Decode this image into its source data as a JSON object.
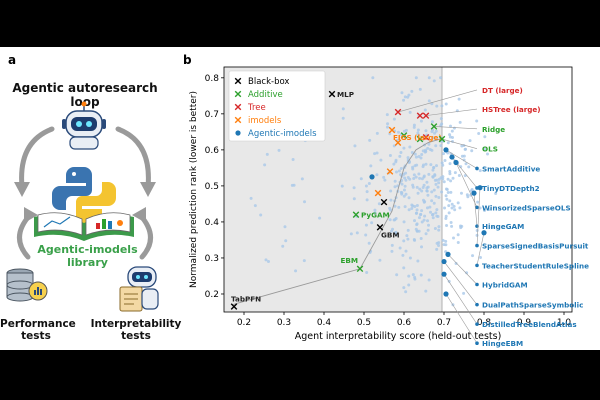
{
  "panel_a": {
    "letter": "a",
    "title": "Agentic autoresearch loop",
    "library_line1": "Agentic-imodels",
    "library_line2": "library",
    "perf_line1": "Performance",
    "perf_line2": "tests",
    "interp_line1": "Interpretability",
    "interp_line2": "tests",
    "library_color": "#3aa04a",
    "icons": [
      "robot-icon",
      "python-logo-icon",
      "book-icon",
      "database-icon",
      "robot-clipboard-icon",
      "cycle-arrow-icon"
    ]
  },
  "panel_b": {
    "letter": "b"
  },
  "chart_data": {
    "type": "scatter",
    "xlabel": "Agent interpretability score (held-out tests)",
    "ylabel": "Normalized prediction rank (lower is better)",
    "xlim": [
      0.15,
      1.02
    ],
    "ylim": [
      0.15,
      0.83
    ],
    "xticks": [
      "0.2",
      "0.3",
      "0.4",
      "0.5",
      "0.6",
      "0.7",
      "0.8",
      "0.9",
      "1.0"
    ],
    "yticks": [
      "0.2",
      "0.3",
      "0.4",
      "0.5",
      "0.6",
      "0.7",
      "0.8"
    ],
    "shaded_region": {
      "x_max": 0.695,
      "color": "#e8e8e8"
    },
    "legend": {
      "placement": "top-left",
      "entries": [
        {
          "label": "Black-box",
          "color": "#000000",
          "marker": "x"
        },
        {
          "label": "Additive",
          "color": "#2ca02c",
          "marker": "x"
        },
        {
          "label": "Tree",
          "color": "#d62728",
          "marker": "x"
        },
        {
          "label": "imodels",
          "color": "#ff7f0e",
          "marker": "x"
        },
        {
          "label": "Agentic-imodels",
          "color": "#1f77b4",
          "marker": "o"
        }
      ]
    },
    "pareto_frontier": [
      [
        0.17,
        0.17
      ],
      [
        0.49,
        0.27
      ],
      [
        0.57,
        0.43
      ],
      [
        0.6,
        0.55
      ],
      [
        0.63,
        0.6
      ],
      [
        0.66,
        0.62
      ],
      [
        0.69,
        0.63
      ]
    ],
    "labeled_points": [
      {
        "label": "MLP",
        "x": 0.42,
        "y": 0.755,
        "group": "Black-box",
        "label_side": "right"
      },
      {
        "label": "TabPFN",
        "x": 0.175,
        "y": 0.165,
        "group": "Black-box",
        "label_side": "above"
      },
      {
        "label": "GBM",
        "x": 0.54,
        "y": 0.385,
        "group": "Black-box",
        "label_side": "below"
      },
      {
        "label": "PyGAM",
        "x": 0.48,
        "y": 0.42,
        "group": "Additive",
        "label_side": "right"
      },
      {
        "label": "EBM",
        "x": 0.49,
        "y": 0.27,
        "group": "Additive",
        "label_side": "above-left"
      },
      {
        "label": "DT (large)",
        "x": 0.585,
        "y": 0.705,
        "group": "Tree",
        "callout_y": 0.758
      },
      {
        "label": "HSTree (large)",
        "x": 0.655,
        "y": 0.695,
        "group": "Tree",
        "callout_y": 0.705
      },
      {
        "label": "Ridge",
        "x": 0.675,
        "y": 0.665,
        "group": "Additive",
        "callout_y": 0.65
      },
      {
        "label": "FIGS (large)",
        "x": 0.57,
        "y": 0.655,
        "group": "imodels",
        "label_side": "below"
      },
      {
        "label": "OLS",
        "x": 0.695,
        "y": 0.63,
        "group": "Additive",
        "callout_y": 0.595
      },
      {
        "label": "SmartAdditive",
        "x": 0.705,
        "y": 0.6,
        "group": "Agentic-imodels",
        "callout_y": 0.54
      },
      {
        "label": "TinyDTDepth2",
        "x": 0.72,
        "y": 0.58,
        "group": "Agentic-imodels",
        "callout_y": 0.486
      },
      {
        "label": "WinsorizedSparseOLS",
        "x": 0.73,
        "y": 0.565,
        "group": "Agentic-imodels",
        "callout_y": 0.432
      },
      {
        "label": "HingeGAM",
        "x": 0.775,
        "y": 0.48,
        "group": "Agentic-imodels",
        "callout_y": 0.38
      },
      {
        "label": "SparseSignedBasisPursuit",
        "x": 0.79,
        "y": 0.495,
        "group": "Agentic-imodels",
        "callout_y": 0.326
      },
      {
        "label": "TeacherStudentRuleSpline",
        "x": 0.8,
        "y": 0.37,
        "group": "Agentic-imodels",
        "callout_y": 0.271
      },
      {
        "label": "HybridGAM",
        "x": 0.71,
        "y": 0.31,
        "group": "Agentic-imodels",
        "callout_y": 0.218
      },
      {
        "label": "DualPathSparseSymbolic",
        "x": 0.7,
        "y": 0.29,
        "group": "Agentic-imodels",
        "callout_y": 0.162
      },
      {
        "label": "DistilledTreeBlendAtlas",
        "x": 0.7,
        "y": 0.255,
        "group": "Agentic-imodels",
        "callout_y": 0.108
      },
      {
        "label": "HingeEBM",
        "x": 0.705,
        "y": 0.2,
        "group": "Agentic-imodels",
        "callout_y": 0.055
      }
    ],
    "extra_markers": [
      {
        "x": 0.55,
        "y": 0.455,
        "group": "Black-box"
      },
      {
        "x": 0.535,
        "y": 0.48,
        "group": "imodels"
      },
      {
        "x": 0.565,
        "y": 0.54,
        "group": "imodels"
      },
      {
        "x": 0.585,
        "y": 0.62,
        "group": "imodels"
      },
      {
        "x": 0.6,
        "y": 0.64,
        "group": "Additive"
      },
      {
        "x": 0.64,
        "y": 0.63,
        "group": "Additive"
      },
      {
        "x": 0.64,
        "y": 0.695,
        "group": "Tree"
      },
      {
        "x": 0.655,
        "y": 0.635,
        "group": "Tree"
      },
      {
        "x": 0.52,
        "y": 0.525,
        "group": "Agentic-imodels"
      }
    ],
    "background_scatter": {
      "group": "Agentic-imodels",
      "color": "#a9c8e8",
      "count": 420,
      "center": [
        0.65,
        0.5
      ],
      "spread": [
        0.07,
        0.12
      ]
    }
  }
}
